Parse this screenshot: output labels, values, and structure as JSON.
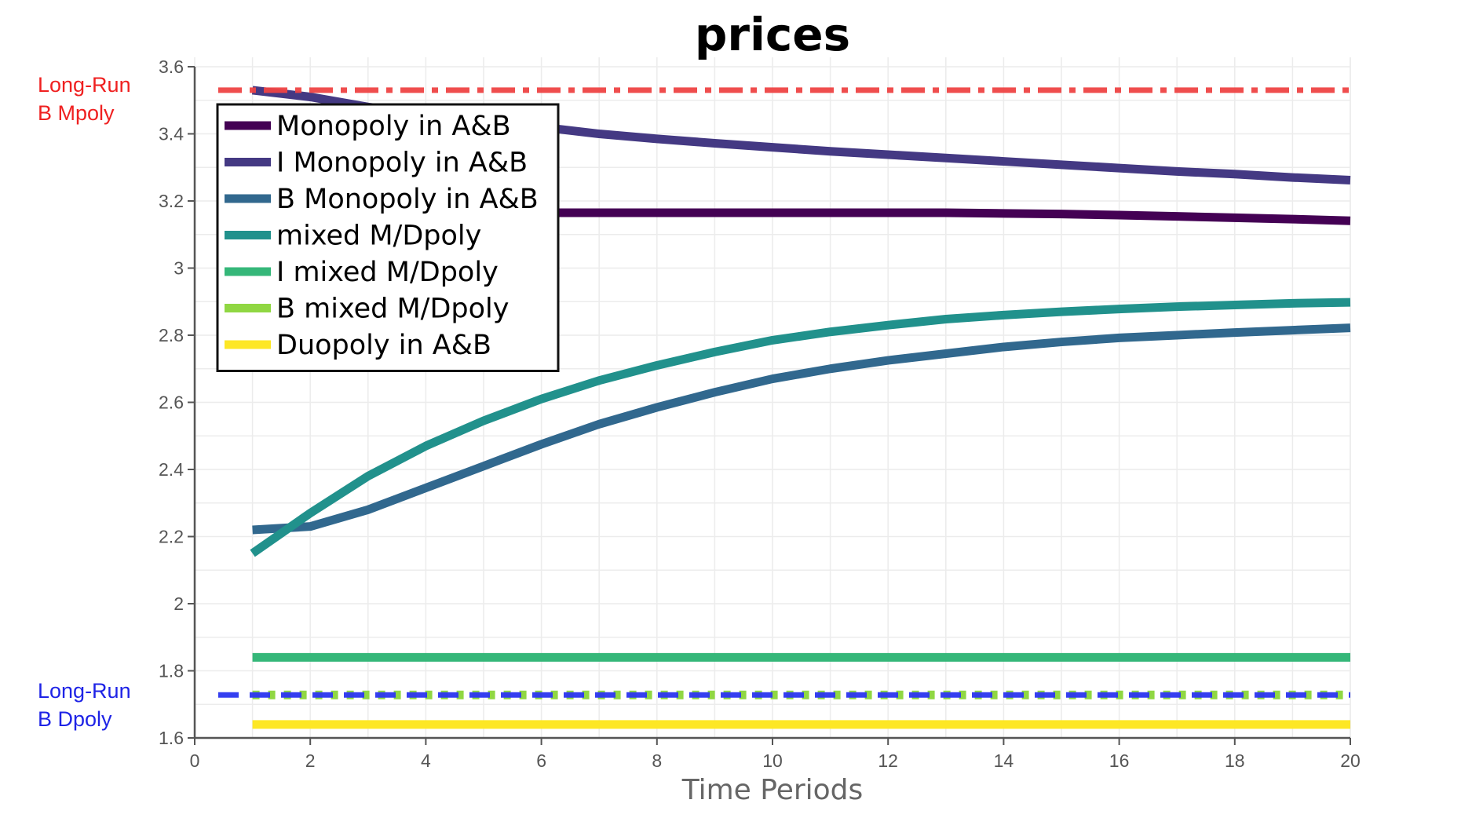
{
  "chart_data": {
    "type": "line",
    "title": "prices",
    "xlabel": "Time Periods",
    "ylabel": "",
    "xlim": [
      0,
      20
    ],
    "ylim": [
      1.6,
      3.6
    ],
    "x_ticks": [
      "0",
      "2",
      "4",
      "6",
      "8",
      "10",
      "12",
      "14",
      "16",
      "18",
      "20"
    ],
    "y_ticks": [
      "1.6",
      "1.8",
      "2",
      "2.2",
      "2.4",
      "2.6",
      "2.8",
      "3",
      "3.2",
      "3.4",
      "3.6"
    ],
    "grid": true,
    "legend_position": "top-left",
    "x": [
      1,
      2,
      3,
      4,
      5,
      6,
      7,
      8,
      9,
      10,
      11,
      12,
      13,
      14,
      15,
      16,
      17,
      18,
      19,
      20
    ],
    "series": [
      {
        "name": "Monopoly in A&B",
        "color": "#440154",
        "values": [
          3.165,
          3.165,
          3.165,
          3.165,
          3.165,
          3.165,
          3.165,
          3.165,
          3.165,
          3.165,
          3.165,
          3.165,
          3.165,
          3.163,
          3.161,
          3.158,
          3.154,
          3.15,
          3.146,
          3.141
        ]
      },
      {
        "name": "I Monopoly in A&B",
        "color": "#443983",
        "values": [
          3.53,
          3.51,
          3.48,
          3.46,
          3.44,
          3.42,
          3.4,
          3.385,
          3.372,
          3.36,
          3.348,
          3.338,
          3.328,
          3.318,
          3.308,
          3.298,
          3.288,
          3.28,
          3.27,
          3.262
        ]
      },
      {
        "name": "B Monopoly in A&B",
        "color": "#31688e",
        "values": [
          2.22,
          2.23,
          2.28,
          2.345,
          2.41,
          2.475,
          2.535,
          2.585,
          2.63,
          2.67,
          2.7,
          2.725,
          2.745,
          2.765,
          2.78,
          2.792,
          2.8,
          2.808,
          2.815,
          2.822
        ]
      },
      {
        "name": "mixed M/Dpoly",
        "color": "#21918c",
        "values": [
          2.15,
          2.27,
          2.38,
          2.47,
          2.545,
          2.61,
          2.665,
          2.71,
          2.75,
          2.785,
          2.81,
          2.83,
          2.848,
          2.86,
          2.87,
          2.878,
          2.885,
          2.89,
          2.895,
          2.898
        ]
      },
      {
        "name": "I mixed M/Dpoly",
        "color": "#35b779",
        "values": [
          1.84,
          1.84,
          1.84,
          1.84,
          1.84,
          1.84,
          1.84,
          1.84,
          1.84,
          1.84,
          1.84,
          1.84,
          1.84,
          1.84,
          1.84,
          1.84,
          1.84,
          1.84,
          1.84,
          1.84
        ]
      },
      {
        "name": "B mixed M/Dpoly",
        "color": "#90d743",
        "values": [
          1.728,
          1.728,
          1.728,
          1.728,
          1.728,
          1.728,
          1.728,
          1.728,
          1.728,
          1.728,
          1.728,
          1.728,
          1.728,
          1.728,
          1.728,
          1.728,
          1.728,
          1.728,
          1.728,
          1.728
        ]
      },
      {
        "name": "Duopoly in A&B",
        "color": "#fde725",
        "values": [
          1.64,
          1.64,
          1.64,
          1.64,
          1.64,
          1.64,
          1.64,
          1.64,
          1.64,
          1.64,
          1.64,
          1.64,
          1.64,
          1.64,
          1.64,
          1.64,
          1.64,
          1.64,
          1.64,
          1.64
        ]
      }
    ],
    "reference_lines": [
      {
        "label_line1": "Long-Run",
        "label_line2": "B Mpoly",
        "y": 3.53,
        "color": "#ef4444",
        "dash": "dash-dot"
      },
      {
        "label_line1": "Long-Run",
        "label_line2": "B Dpoly",
        "y": 1.728,
        "color": "#2b35f0",
        "dash": "dash"
      }
    ]
  }
}
